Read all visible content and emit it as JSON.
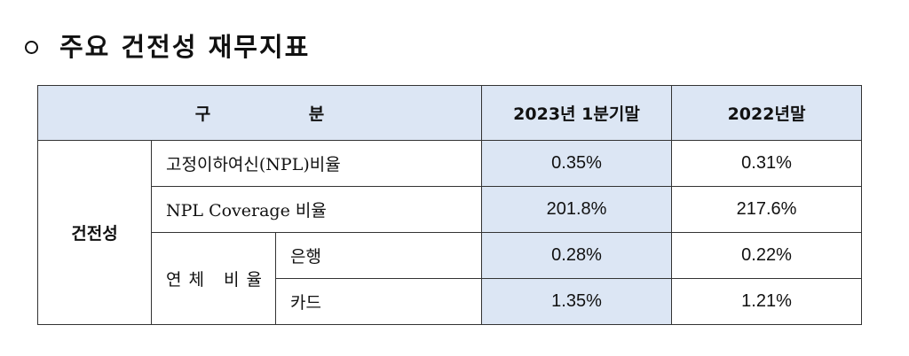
{
  "heading": {
    "bullet": "o",
    "title": "주요 건전성 재무지표"
  },
  "table": {
    "header": {
      "category": "구 분",
      "col1": "2023년 1분기말",
      "col2": "2022년말"
    },
    "group_label": "건전성",
    "rows": [
      {
        "item": "고정이하여신(NPL)비율",
        "v2023q1": "0.35%",
        "v2022": "0.31%"
      },
      {
        "item": "NPL Coverage 비율",
        "v2023q1": "201.8%",
        "v2022": "217.6%"
      },
      {
        "item": "연체 비율",
        "sub": "은행",
        "v2023q1": "0.28%",
        "v2022": "0.22%"
      },
      {
        "sub": "카드",
        "v2023q1": "1.35%",
        "v2022": "1.21%"
      }
    ]
  },
  "colors": {
    "header_fill": "#dce6f4",
    "border": "#333333"
  }
}
